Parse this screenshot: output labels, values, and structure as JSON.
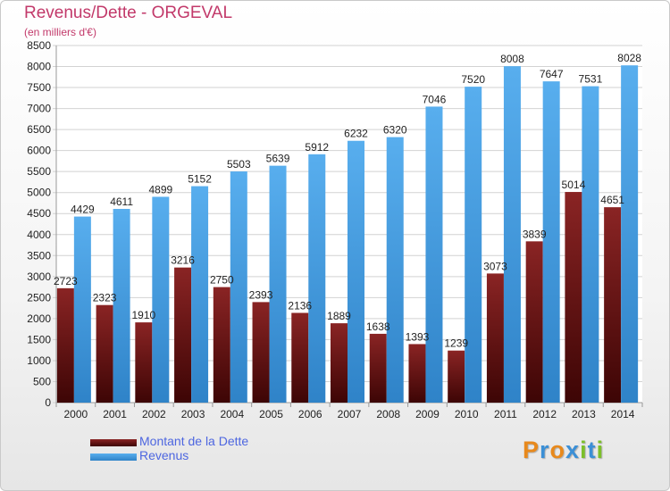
{
  "header": {
    "title": "Revenus/Dette - ORGEVAL",
    "subtitle": "(en milliers d'€)"
  },
  "colors": {
    "dette": "#7a1a1a",
    "revenus": "#4aa3e6",
    "title": "#c2396a",
    "axis_text": "#222222",
    "legend_text": "#4d66e0"
  },
  "legend": {
    "items": [
      {
        "label": "Montant de la Dette",
        "color": "#7a1a1a"
      },
      {
        "label": "Revenus",
        "color": "#4aa3e6"
      }
    ]
  },
  "logo": {
    "text": "Proxiti",
    "letter_colors": [
      "#e8891c",
      "#3b8fd6",
      "#e8891c",
      "#3b8fd6",
      "#7cbf2a",
      "#3b8fd6",
      "#7cbf2a"
    ],
    "icon": "proxiti-logo"
  },
  "chart_data": {
    "type": "bar",
    "categories": [
      "2000",
      "2001",
      "2002",
      "2003",
      "2004",
      "2005",
      "2006",
      "2007",
      "2008",
      "2009",
      "2010",
      "2011",
      "2012",
      "2013",
      "2014"
    ],
    "series": [
      {
        "name": "Montant de la Dette",
        "values": [
          2723,
          2323,
          1910,
          3216,
          2750,
          2393,
          2136,
          1889,
          1638,
          1393,
          1239,
          3073,
          3839,
          5014,
          4651
        ],
        "labels": [
          "2723",
          "2323",
          "1910",
          "3216",
          "2750",
          "2393",
          "2136",
          "1889",
          "1638",
          "1393",
          "1239",
          "3073",
          "3839",
          "5014",
          "4651"
        ]
      },
      {
        "name": "Revenus",
        "values": [
          4429,
          4611,
          4899,
          5152,
          5503,
          5639,
          5912,
          6232,
          6320,
          7046,
          7520,
          8008,
          7647,
          7531,
          8028
        ],
        "labels": [
          "4429",
          "4611",
          "4899",
          "5152",
          "5503",
          "5639",
          "5912",
          "6232",
          "6320",
          "7046",
          "7520",
          "8008",
          "7647",
          "7531",
          "8028"
        ]
      }
    ],
    "ylim": [
      0,
      8500
    ],
    "yticks": [
      "0",
      "500",
      "1000",
      "1500",
      "2000",
      "2500",
      "3000",
      "3500",
      "4000",
      "4500",
      "5000",
      "5500",
      "6000",
      "6500",
      "7000",
      "7500",
      "8000",
      "8500"
    ],
    "grid": true,
    "legend_position": "bottom-left"
  }
}
